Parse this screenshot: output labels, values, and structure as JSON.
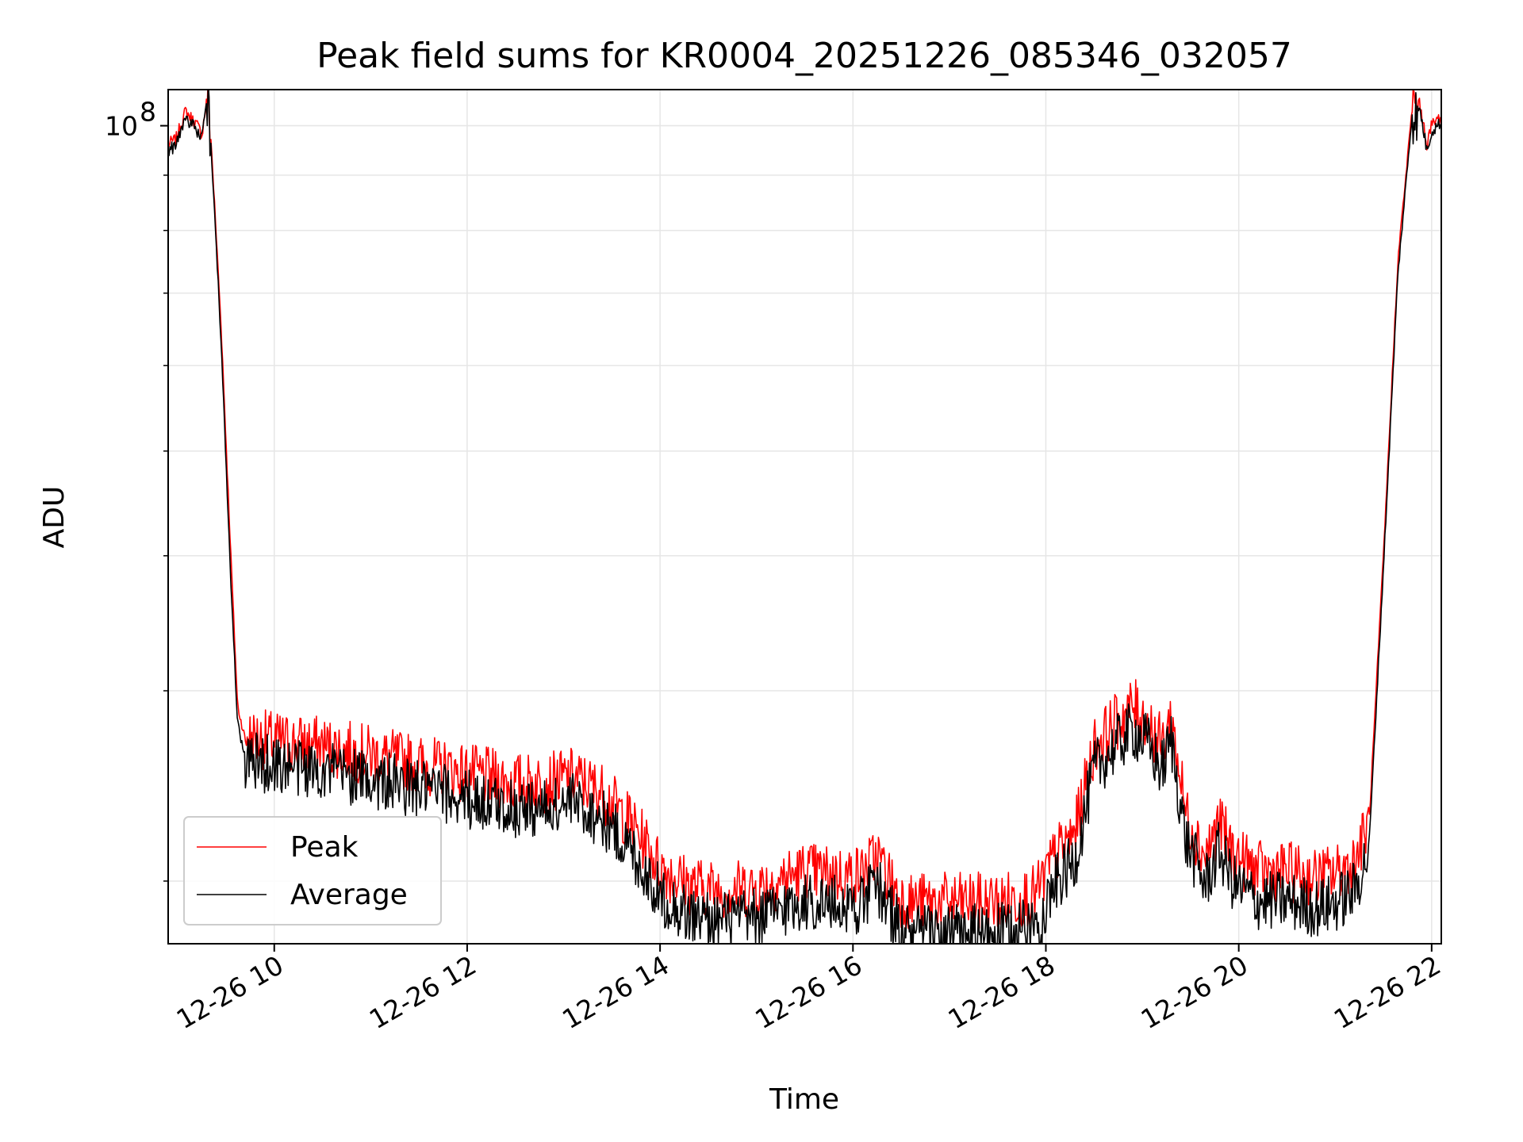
{
  "chart_data": {
    "type": "line",
    "title": "Peak field sums for KR0004_20251226_085346_032057",
    "xlabel": "Time",
    "ylabel": "ADU",
    "x_unit": "hours on 2025-12-26",
    "xlim": [
      8.9,
      22.1
    ],
    "ylim": [
      17500000,
      108000000
    ],
    "yscale": "log",
    "x_ticks": [
      {
        "value": 10,
        "label": "12-26 10"
      },
      {
        "value": 12,
        "label": "12-26 12"
      },
      {
        "value": 14,
        "label": "12-26 14"
      },
      {
        "value": 16,
        "label": "12-26 16"
      },
      {
        "value": 18,
        "label": "12-26 18"
      },
      {
        "value": 20,
        "label": "12-26 20"
      },
      {
        "value": 22,
        "label": "12-26 22"
      }
    ],
    "y_major_ticks": [
      {
        "value": 100000000,
        "base": "10",
        "exponent": "8"
      }
    ],
    "y_minor_ticks": [
      20000000,
      30000000,
      40000000,
      50000000,
      60000000,
      70000000,
      80000000,
      90000000
    ],
    "grid": true,
    "legend": {
      "position": "lower-left",
      "entries": [
        "Peak",
        "Average"
      ]
    },
    "series": [
      {
        "name": "Peak",
        "color": "#ff0000",
        "x": [
          8.9,
          8.98,
          9.08,
          9.2,
          9.25,
          9.31,
          9.35,
          9.45,
          9.55,
          9.62,
          9.7,
          10.0,
          10.5,
          11.0,
          11.5,
          12.0,
          12.5,
          12.8,
          13.1,
          13.4,
          13.7,
          14.0,
          14.3,
          14.6,
          15.0,
          15.5,
          15.9,
          16.1,
          16.25,
          16.4,
          16.5,
          16.6,
          17.0,
          17.5,
          17.9,
          18.1,
          18.3,
          18.5,
          18.75,
          18.9,
          19.05,
          19.2,
          19.3,
          19.45,
          19.65,
          19.8,
          19.95,
          20.2,
          20.5,
          20.8,
          21.0,
          21.2,
          21.35,
          21.5,
          21.65,
          21.8,
          21.88,
          21.95,
          22.0,
          22.1
        ],
        "y": [
          96000000,
          97000000,
          103000000,
          100000000,
          98000000,
          107000000,
          95000000,
          65000000,
          40000000,
          29000000,
          27000000,
          26800000,
          26500000,
          26000000,
          25500000,
          25000000,
          24500000,
          24500000,
          24800000,
          24000000,
          22500000,
          20500000,
          19700000,
          19500000,
          19600000,
          20300000,
          20100000,
          20200000,
          21000000,
          19800000,
          19200000,
          19000000,
          19000000,
          19000000,
          19300000,
          21000000,
          22000000,
          26500000,
          28000000,
          28800000,
          28000000,
          26500000,
          28200000,
          23000000,
          21000000,
          22500000,
          21000000,
          20300000,
          20300000,
          20000000,
          20200000,
          20700000,
          22500000,
          40000000,
          75000000,
          104000000,
          104500000,
          96000000,
          100000000,
          102000000
        ]
      },
      {
        "name": "Average",
        "color": "#000000",
        "x": [
          8.9,
          8.98,
          9.08,
          9.2,
          9.25,
          9.31,
          9.35,
          9.45,
          9.55,
          9.62,
          9.7,
          10.0,
          10.5,
          11.0,
          11.5,
          12.0,
          12.5,
          12.8,
          13.1,
          13.4,
          13.7,
          14.0,
          14.3,
          14.6,
          15.0,
          15.5,
          15.9,
          16.1,
          16.25,
          16.4,
          16.5,
          16.6,
          17.0,
          17.5,
          17.9,
          18.1,
          18.3,
          18.5,
          18.75,
          18.9,
          19.05,
          19.2,
          19.3,
          19.45,
          19.65,
          19.8,
          19.95,
          20.2,
          20.5,
          20.8,
          21.0,
          21.2,
          21.35,
          21.5,
          21.65,
          21.8,
          21.88,
          21.95,
          22.0,
          22.1
        ],
        "y": [
          95000000,
          96000000,
          102000000,
          99000000,
          97500000,
          106000000,
          94000000,
          63000000,
          38000000,
          28000000,
          26000000,
          25800000,
          25500000,
          25000000,
          24500000,
          24000000,
          23500000,
          23500000,
          23800000,
          23000000,
          21500000,
          19500000,
          18700000,
          18500000,
          18600000,
          19300000,
          19100000,
          19200000,
          20000000,
          18800000,
          18200000,
          18000000,
          18000000,
          18000000,
          18300000,
          20000000,
          21000000,
          25500000,
          27000000,
          27800000,
          27000000,
          25500000,
          27200000,
          22000000,
          20000000,
          21500000,
          20000000,
          19300000,
          19300000,
          19000000,
          19200000,
          19700000,
          21500000,
          39000000,
          73000000,
          103000000,
          103500000,
          95000000,
          99000000,
          101000000
        ]
      }
    ]
  }
}
